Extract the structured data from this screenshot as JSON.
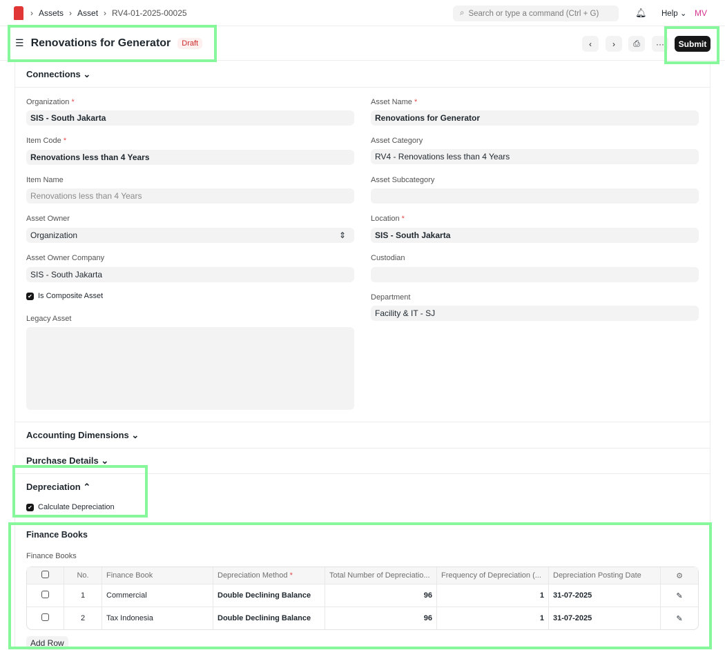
{
  "nav": {
    "breadcrumbs": [
      "Assets",
      "Asset",
      "RV4-01-2025-00025"
    ],
    "search_placeholder": "Search or type a command (Ctrl + G)",
    "help": "Help",
    "avatar": "MV"
  },
  "header": {
    "title": "Renovations for Generator",
    "status": "Draft",
    "submit": "Submit"
  },
  "sections": {
    "connections": "Connections",
    "accounting": "Accounting Dimensions",
    "purchase": "Purchase Details",
    "depreciation": "Depreciation",
    "finance_books": "Finance Books"
  },
  "fields": {
    "organization": {
      "label": "Organization",
      "value": "SIS - South Jakarta"
    },
    "asset_name": {
      "label": "Asset Name",
      "value": "Renovations for Generator"
    },
    "item_code": {
      "label": "Item Code",
      "value": "Renovations less than 4 Years"
    },
    "asset_category": {
      "label": "Asset Category",
      "value": "RV4 - Renovations less than 4 Years"
    },
    "item_name": {
      "label": "Item Name",
      "value": "Renovations less than 4 Years"
    },
    "asset_subcategory": {
      "label": "Asset Subcategory",
      "value": ""
    },
    "asset_owner": {
      "label": "Asset Owner",
      "value": "Organization"
    },
    "location": {
      "label": "Location",
      "value": "SIS - South Jakarta"
    },
    "asset_owner_company": {
      "label": "Asset Owner Company",
      "value": "SIS - South Jakarta"
    },
    "custodian": {
      "label": "Custodian",
      "value": ""
    },
    "is_composite": {
      "label": "Is Composite Asset",
      "checked": true
    },
    "department": {
      "label": "Department",
      "value": "Facility & IT - SJ"
    },
    "legacy_asset": {
      "label": "Legacy Asset",
      "value": ""
    },
    "calculate_depreciation": {
      "label": "Calculate Depreciation",
      "checked": true
    }
  },
  "finance_books": {
    "label": "Finance Books",
    "columns": [
      "No.",
      "Finance Book",
      "Depreciation Method",
      "Total Number of Depreciatio...",
      "Frequency of Depreciation (...",
      "Depreciation Posting Date"
    ],
    "rows": [
      {
        "no": "1",
        "book": "Commercial",
        "method": "Double Declining Balance",
        "total": "96",
        "freq": "1",
        "date": "31-07-2025"
      },
      {
        "no": "2",
        "book": "Tax Indonesia",
        "method": "Double Declining Balance",
        "total": "96",
        "freq": "1",
        "date": "31-07-2025"
      }
    ],
    "add_row": "Add Row"
  }
}
